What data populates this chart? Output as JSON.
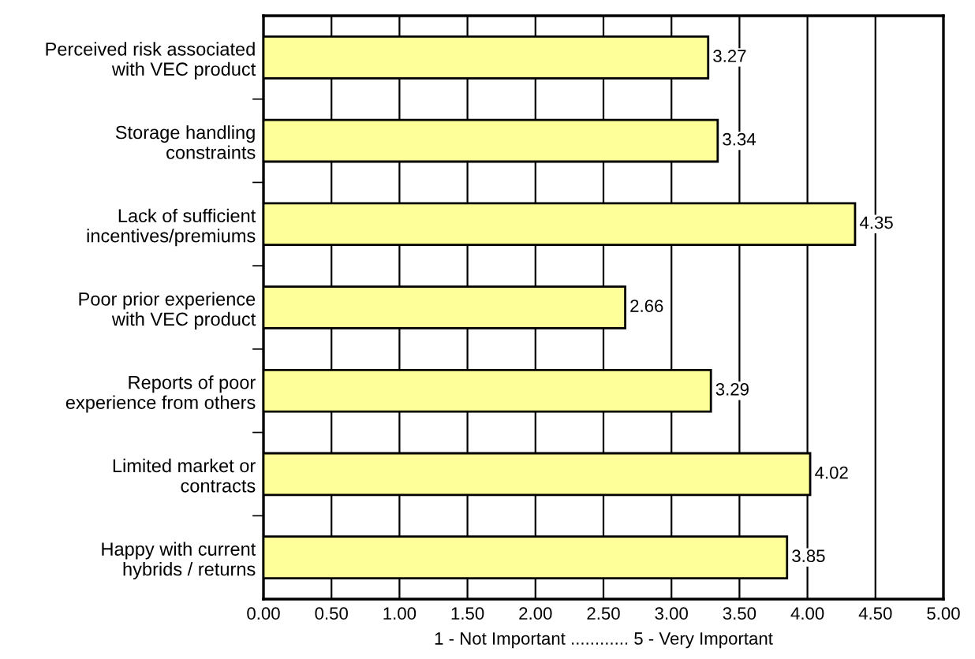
{
  "chart_data": {
    "type": "bar",
    "orientation": "horizontal",
    "categories": [
      "Perceived risk associated\nwith VEC product",
      "Storage handling\nconstraints",
      "Lack of sufficient\nincentives/premiums",
      "Poor prior experience\nwith VEC product",
      "Reports of poor\nexperience from others",
      "Limited market or\ncontracts",
      "Happy with current\nhybrids / returns"
    ],
    "values": [
      3.27,
      3.34,
      4.35,
      2.66,
      3.29,
      4.02,
      3.85
    ],
    "color": "#ffff99",
    "xlabel": "1 - Not Important ............ 5 - Very Important",
    "xlim": [
      0,
      5
    ],
    "xticks": [
      {
        "value": 0,
        "label": "0.00"
      },
      {
        "value": 0.5,
        "label": "0.50"
      },
      {
        "value": 1,
        "label": "1.00"
      },
      {
        "value": 1.5,
        "label": "1.50"
      },
      {
        "value": 2,
        "label": "2.00"
      },
      {
        "value": 2.5,
        "label": "2.50"
      },
      {
        "value": 3,
        "label": "3.00"
      },
      {
        "value": 3.5,
        "label": "3.50"
      },
      {
        "value": 4,
        "label": "4.00"
      },
      {
        "value": 4.5,
        "label": "4.50"
      },
      {
        "value": 5,
        "label": "5.00"
      }
    ],
    "grid": "x",
    "data_labels": true
  }
}
